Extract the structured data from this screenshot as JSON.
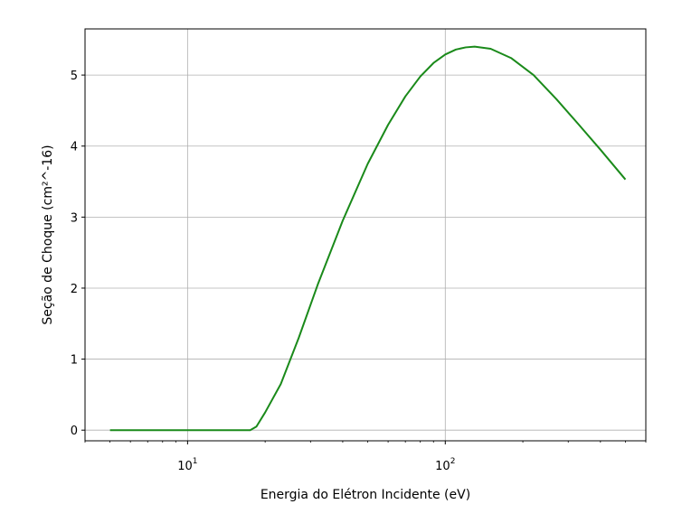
{
  "chart_data": {
    "type": "line",
    "title": "",
    "xlabel": "Energia do Elétron Incidente (eV)",
    "ylabel": "Seção de Choque (cm²^-16)",
    "x_scale": "log",
    "xlim": [
      4,
      600
    ],
    "ylim": [
      -0.15,
      5.65
    ],
    "grid": true,
    "x_ticks": [
      {
        "value": 10,
        "base": "10",
        "exp": "1"
      },
      {
        "value": 100,
        "base": "10",
        "exp": "2"
      }
    ],
    "y_ticks": [
      {
        "value": 0,
        "label": "0"
      },
      {
        "value": 1,
        "label": "1"
      },
      {
        "value": 2,
        "label": "2"
      },
      {
        "value": 3,
        "label": "3"
      },
      {
        "value": 4,
        "label": "4"
      },
      {
        "value": 5,
        "label": "5"
      }
    ],
    "series": [
      {
        "color": "#1a8a1a",
        "x": [
          5,
          8,
          12,
          15,
          17.5,
          18.5,
          20,
          23,
          27,
          32,
          40,
          50,
          60,
          70,
          80,
          90,
          100,
          110,
          120,
          130,
          150,
          180,
          220,
          270,
          330,
          400,
          500
        ],
        "y": [
          0,
          0,
          0,
          0,
          0,
          0.05,
          0.25,
          0.65,
          1.3,
          2.05,
          2.95,
          3.75,
          4.3,
          4.7,
          4.98,
          5.17,
          5.29,
          5.36,
          5.39,
          5.4,
          5.37,
          5.24,
          5.0,
          4.66,
          4.3,
          3.95,
          3.53
        ]
      }
    ]
  }
}
